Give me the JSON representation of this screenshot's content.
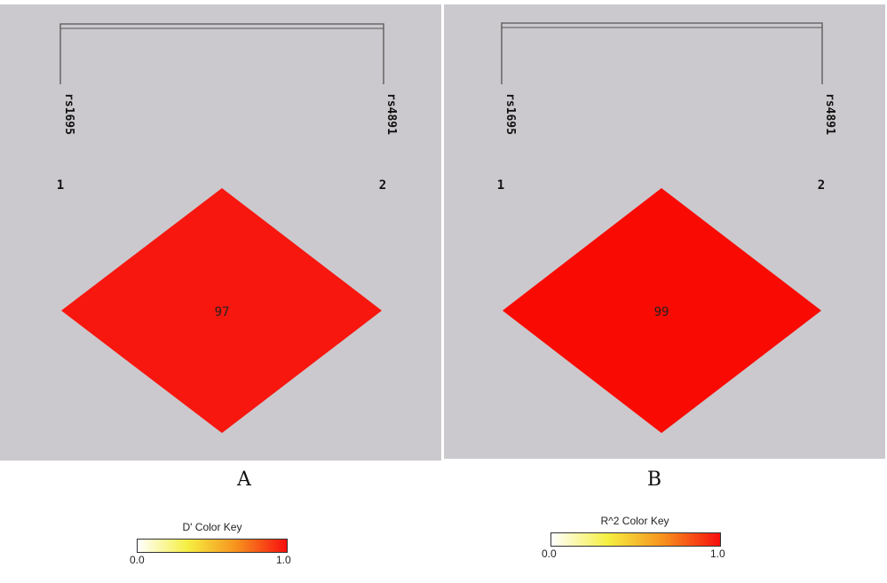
{
  "panels": [
    {
      "id": "A",
      "letter": "A",
      "markers": [
        {
          "name": "rs1695",
          "index": "1"
        },
        {
          "name": "rs4891",
          "index": "2"
        }
      ],
      "pair_value": "97",
      "cell_color": "#f7170f",
      "color_key": {
        "title": "D' Color Key",
        "min": "0.0",
        "max": "1.0"
      }
    },
    {
      "id": "B",
      "letter": "B",
      "markers": [
        {
          "name": "rs1695",
          "index": "1"
        },
        {
          "name": "rs4891",
          "index": "2"
        }
      ],
      "pair_value": "99",
      "cell_color": "#f90a02",
      "color_key": {
        "title": "R^2 Color Key",
        "min": "0.0",
        "max": "1.0"
      }
    }
  ],
  "key_gradient": [
    "#ffffff",
    "#f5ef42",
    "#f7901d",
    "#f70f0f"
  ]
}
